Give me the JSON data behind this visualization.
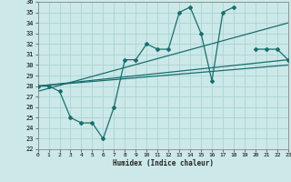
{
  "xlabel": "Humidex (Indice chaleur)",
  "bg_color": "#cce8e8",
  "grid_color": "#aad4d4",
  "line_color": "#1a6e6e",
  "xmin": 0,
  "xmax": 23,
  "ymin": 22,
  "ymax": 36,
  "x_ticks": [
    0,
    1,
    2,
    3,
    4,
    5,
    6,
    7,
    8,
    9,
    10,
    11,
    12,
    13,
    14,
    15,
    16,
    17,
    18,
    19,
    20,
    21,
    22,
    23
  ],
  "y_ticks": [
    22,
    23,
    24,
    25,
    26,
    27,
    28,
    29,
    30,
    31,
    32,
    33,
    34,
    35,
    36
  ],
  "line1_x": [
    0,
    1,
    2,
    3,
    4,
    5,
    6,
    7,
    8,
    9,
    10,
    11,
    12,
    13,
    14,
    15,
    16,
    17,
    18,
    19,
    20,
    21,
    22,
    23
  ],
  "line1_y": [
    28,
    28,
    27.5,
    25,
    24.5,
    24.5,
    23,
    26,
    30.5,
    30.5,
    32,
    31.5,
    31.5,
    35,
    35.5,
    33,
    28.5,
    35,
    35.5,
    null,
    31.5,
    31.5,
    31.5,
    30.5
  ],
  "line2_x": [
    0,
    23
  ],
  "line2_y": [
    28,
    30.5
  ],
  "line3_x": [
    0,
    23
  ],
  "line3_y": [
    28,
    30
  ],
  "line4_x": [
    0,
    23
  ],
  "line4_y": [
    27.5,
    34
  ]
}
